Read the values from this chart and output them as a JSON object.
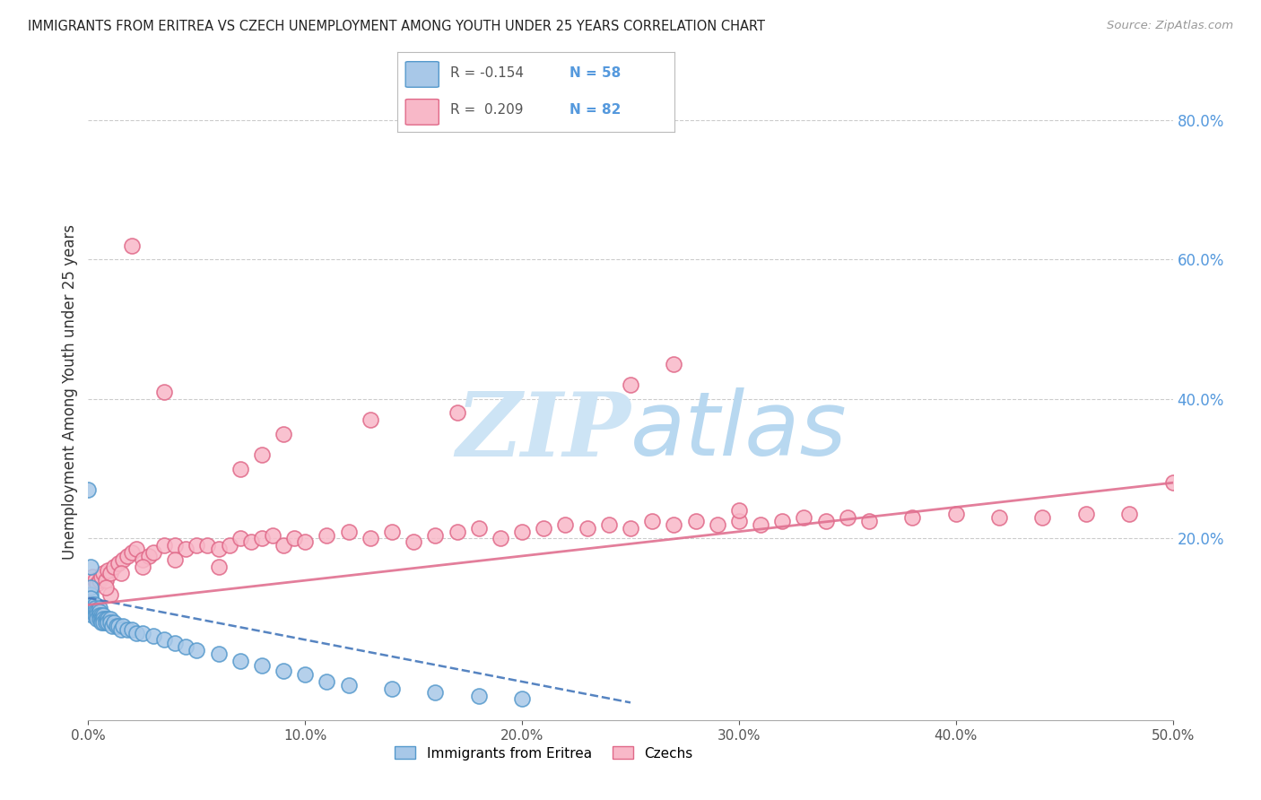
{
  "title": "IMMIGRANTS FROM ERITREA VS CZECH UNEMPLOYMENT AMONG YOUTH UNDER 25 YEARS CORRELATION CHART",
  "source": "Source: ZipAtlas.com",
  "ylabel": "Unemployment Among Youth under 25 years",
  "xlim": [
    0.0,
    0.5
  ],
  "ylim": [
    -0.06,
    0.88
  ],
  "xticks": [
    0.0,
    0.1,
    0.2,
    0.3,
    0.4,
    0.5
  ],
  "yticks_right": [
    0.2,
    0.4,
    0.6,
    0.8
  ],
  "legend_eritrea_r": -0.154,
  "legend_eritrea_n": 58,
  "legend_czech_r": 0.209,
  "legend_czech_n": 82,
  "eritrea_face_color": "#a8c8e8",
  "eritrea_edge_color": "#5599cc",
  "czech_face_color": "#f8b8c8",
  "czech_edge_color": "#e06888",
  "eritrea_line_color": "#4477bb",
  "czech_line_color": "#e07090",
  "axis_label_color": "#5599dd",
  "background_color": "#ffffff",
  "grid_color": "#cccccc",
  "watermark_color": "#dceef8",
  "eritrea_x": [
    0.001,
    0.001,
    0.001,
    0.002,
    0.002,
    0.002,
    0.002,
    0.003,
    0.003,
    0.003,
    0.003,
    0.004,
    0.004,
    0.004,
    0.005,
    0.005,
    0.005,
    0.005,
    0.006,
    0.006,
    0.006,
    0.007,
    0.007,
    0.007,
    0.008,
    0.008,
    0.009,
    0.009,
    0.01,
    0.01,
    0.011,
    0.012,
    0.013,
    0.014,
    0.015,
    0.016,
    0.018,
    0.02,
    0.022,
    0.025,
    0.03,
    0.035,
    0.04,
    0.045,
    0.05,
    0.06,
    0.07,
    0.08,
    0.09,
    0.1,
    0.11,
    0.12,
    0.14,
    0.16,
    0.18,
    0.2,
    0.0,
    0.001
  ],
  "eritrea_y": [
    0.12,
    0.13,
    0.115,
    0.105,
    0.1,
    0.095,
    0.09,
    0.105,
    0.1,
    0.095,
    0.09,
    0.095,
    0.09,
    0.085,
    0.1,
    0.095,
    0.09,
    0.085,
    0.09,
    0.085,
    0.08,
    0.09,
    0.085,
    0.08,
    0.085,
    0.08,
    0.085,
    0.08,
    0.085,
    0.08,
    0.075,
    0.08,
    0.075,
    0.075,
    0.07,
    0.075,
    0.07,
    0.07,
    0.065,
    0.065,
    0.06,
    0.055,
    0.05,
    0.045,
    0.04,
    0.035,
    0.025,
    0.018,
    0.01,
    0.005,
    -0.005,
    -0.01,
    -0.015,
    -0.02,
    -0.025,
    -0.03,
    0.27,
    0.16
  ],
  "czech_x": [
    0.001,
    0.002,
    0.003,
    0.004,
    0.005,
    0.006,
    0.007,
    0.008,
    0.009,
    0.01,
    0.012,
    0.014,
    0.016,
    0.018,
    0.02,
    0.022,
    0.025,
    0.028,
    0.03,
    0.035,
    0.04,
    0.045,
    0.05,
    0.055,
    0.06,
    0.065,
    0.07,
    0.075,
    0.08,
    0.085,
    0.09,
    0.095,
    0.1,
    0.11,
    0.12,
    0.13,
    0.14,
    0.15,
    0.16,
    0.17,
    0.18,
    0.19,
    0.2,
    0.21,
    0.22,
    0.23,
    0.24,
    0.25,
    0.26,
    0.27,
    0.28,
    0.29,
    0.3,
    0.31,
    0.32,
    0.33,
    0.34,
    0.35,
    0.36,
    0.38,
    0.4,
    0.42,
    0.44,
    0.46,
    0.48,
    0.5,
    0.17,
    0.13,
    0.09,
    0.08,
    0.07,
    0.25,
    0.27,
    0.3,
    0.02,
    0.035,
    0.015,
    0.025,
    0.01,
    0.008,
    0.06,
    0.04
  ],
  "czech_y": [
    0.13,
    0.145,
    0.14,
    0.135,
    0.14,
    0.145,
    0.15,
    0.14,
    0.155,
    0.15,
    0.16,
    0.165,
    0.17,
    0.175,
    0.18,
    0.185,
    0.17,
    0.175,
    0.18,
    0.19,
    0.19,
    0.185,
    0.19,
    0.19,
    0.185,
    0.19,
    0.2,
    0.195,
    0.2,
    0.205,
    0.19,
    0.2,
    0.195,
    0.205,
    0.21,
    0.2,
    0.21,
    0.195,
    0.205,
    0.21,
    0.215,
    0.2,
    0.21,
    0.215,
    0.22,
    0.215,
    0.22,
    0.215,
    0.225,
    0.22,
    0.225,
    0.22,
    0.225,
    0.22,
    0.225,
    0.23,
    0.225,
    0.23,
    0.225,
    0.23,
    0.235,
    0.23,
    0.23,
    0.235,
    0.235,
    0.28,
    0.38,
    0.37,
    0.35,
    0.32,
    0.3,
    0.42,
    0.45,
    0.24,
    0.62,
    0.41,
    0.15,
    0.16,
    0.12,
    0.13,
    0.16,
    0.17
  ]
}
